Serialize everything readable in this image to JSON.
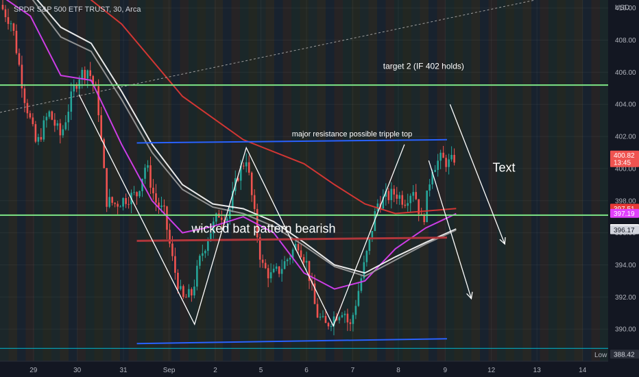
{
  "header": {
    "symbol_line": "SPDR S&P 500 ETF TRUST, 30, Arca"
  },
  "price_axis": {
    "unit": "USD"
  },
  "colors": {
    "background": "#131722",
    "up": "#26a69a",
    "down": "#ef5350"
  },
  "chart_data": {
    "type": "candlestick",
    "ylim": [
      388,
      410.5
    ],
    "y_ticks": [
      390,
      392,
      394,
      396,
      398,
      400,
      402,
      404,
      406,
      408,
      410
    ],
    "y_tick_labels": [
      "390.00",
      "392.00",
      "394.00",
      "396.00",
      "398.00",
      "400.00",
      "402.00",
      "404.00",
      "406.00",
      "408.00",
      "410.00"
    ],
    "x_ticks": [
      {
        "label": "29",
        "pos": 0.055
      },
      {
        "label": "30",
        "pos": 0.127
      },
      {
        "label": "31",
        "pos": 0.203
      },
      {
        "label": "Sep",
        "pos": 0.278
      },
      {
        "label": "2",
        "pos": 0.354
      },
      {
        "label": "5",
        "pos": 0.429
      },
      {
        "label": "6",
        "pos": 0.504
      },
      {
        "label": "7",
        "pos": 0.58
      },
      {
        "label": "8",
        "pos": 0.655
      },
      {
        "label": "9",
        "pos": 0.732
      },
      {
        "label": "12",
        "pos": 0.808
      },
      {
        "label": "13",
        "pos": 0.883
      },
      {
        "label": "14",
        "pos": 0.958
      }
    ],
    "price_path": [
      [
        0.0,
        410.2
      ],
      [
        0.02,
        409.0
      ],
      [
        0.04,
        404.5
      ],
      [
        0.06,
        401.4
      ],
      [
        0.08,
        403.5
      ],
      [
        0.1,
        402.0
      ],
      [
        0.12,
        404.8
      ],
      [
        0.13,
        405.8
      ],
      [
        0.145,
        406.2
      ],
      [
        0.16,
        404.5
      ],
      [
        0.175,
        398.0
      ],
      [
        0.19,
        397.8
      ],
      [
        0.21,
        398.2
      ],
      [
        0.225,
        398.4
      ],
      [
        0.24,
        400.3
      ],
      [
        0.255,
        398.0
      ],
      [
        0.27,
        397.2
      ],
      [
        0.285,
        394.0
      ],
      [
        0.3,
        391.8
      ],
      [
        0.315,
        392.2
      ],
      [
        0.33,
        394.5
      ],
      [
        0.345,
        396.0
      ],
      [
        0.36,
        397.2
      ],
      [
        0.375,
        397.0
      ],
      [
        0.39,
        399.5
      ],
      [
        0.405,
        400.7
      ],
      [
        0.415,
        398.0
      ],
      [
        0.43,
        394.0
      ],
      [
        0.445,
        393.3
      ],
      [
        0.46,
        393.7
      ],
      [
        0.475,
        394.5
      ],
      [
        0.49,
        395.4
      ],
      [
        0.505,
        394.0
      ],
      [
        0.52,
        391.0
      ],
      [
        0.535,
        390.2
      ],
      [
        0.55,
        390.8
      ],
      [
        0.565,
        391.3
      ],
      [
        0.575,
        390.0
      ],
      [
        0.59,
        392.5
      ],
      [
        0.605,
        395.0
      ],
      [
        0.62,
        397.8
      ],
      [
        0.635,
        398.2
      ],
      [
        0.65,
        398.5
      ],
      [
        0.665,
        398.0
      ],
      [
        0.68,
        398.8
      ],
      [
        0.695,
        396.5
      ],
      [
        0.71,
        400.1
      ],
      [
        0.725,
        400.6
      ],
      [
        0.74,
        400.3
      ],
      [
        0.75,
        400.82
      ]
    ],
    "moving_averages": [
      {
        "color": "#e53935",
        "points": [
          [
            0.0,
            415
          ],
          [
            0.1,
            412
          ],
          [
            0.2,
            409
          ],
          [
            0.3,
            404.5
          ],
          [
            0.4,
            401.8
          ],
          [
            0.5,
            400.3
          ],
          [
            0.55,
            399.0
          ],
          [
            0.6,
            397.8
          ],
          [
            0.65,
            397.2
          ],
          [
            0.75,
            397.51
          ]
        ]
      },
      {
        "color": "#e040fb",
        "points": [
          [
            0.0,
            410.8
          ],
          [
            0.05,
            409.5
          ],
          [
            0.1,
            405.8
          ],
          [
            0.15,
            405.5
          ],
          [
            0.2,
            401.5
          ],
          [
            0.25,
            398.0
          ],
          [
            0.3,
            396.0
          ],
          [
            0.35,
            396.4
          ],
          [
            0.4,
            397.0
          ],
          [
            0.45,
            396.0
          ],
          [
            0.5,
            393.5
          ],
          [
            0.55,
            392.5
          ],
          [
            0.6,
            393.0
          ],
          [
            0.65,
            395.0
          ],
          [
            0.7,
            396.3
          ],
          [
            0.75,
            397.19
          ]
        ]
      },
      {
        "color": "#ffffff",
        "points": [
          [
            0.0,
            412.5
          ],
          [
            0.05,
            411.0
          ],
          [
            0.1,
            408.8
          ],
          [
            0.15,
            407.8
          ],
          [
            0.2,
            404.8
          ],
          [
            0.25,
            401.5
          ],
          [
            0.3,
            399.0
          ],
          [
            0.35,
            397.8
          ],
          [
            0.4,
            397.5
          ],
          [
            0.45,
            396.7
          ],
          [
            0.5,
            395.4
          ],
          [
            0.55,
            394.0
          ],
          [
            0.6,
            393.5
          ],
          [
            0.65,
            394.5
          ],
          [
            0.7,
            395.4
          ],
          [
            0.75,
            396.24
          ]
        ]
      },
      {
        "color": "#9e9e9e",
        "points": [
          [
            0.0,
            412.2
          ],
          [
            0.05,
            410.7
          ],
          [
            0.1,
            408.2
          ],
          [
            0.15,
            407.3
          ],
          [
            0.2,
            404.3
          ],
          [
            0.25,
            401.0
          ],
          [
            0.3,
            398.7
          ],
          [
            0.35,
            397.6
          ],
          [
            0.4,
            397.2
          ],
          [
            0.45,
            396.4
          ],
          [
            0.5,
            395.2
          ],
          [
            0.55,
            393.9
          ],
          [
            0.6,
            393.3
          ],
          [
            0.65,
            394.3
          ],
          [
            0.7,
            395.3
          ],
          [
            0.75,
            396.17
          ]
        ]
      }
    ],
    "horizontal_lines": [
      {
        "y": 405.2,
        "color": "#7ee787",
        "width": 2
      },
      {
        "y": 397.1,
        "color": "#7ee787",
        "width": 2
      },
      {
        "y": 388.8,
        "color": "#00bcd4",
        "width": 1
      }
    ],
    "trend_lines": [
      {
        "color": "#2962ff",
        "width": 2,
        "from": [
          0.225,
          401.6
        ],
        "to": [
          0.735,
          401.8
        ]
      },
      {
        "color": "#2962ff",
        "width": 2,
        "from": [
          0.225,
          389.1
        ],
        "to": [
          0.735,
          389.4
        ]
      },
      {
        "color": "#b0363b",
        "width": 3,
        "from": [
          0.225,
          395.5
        ],
        "to": [
          0.735,
          395.7
        ]
      },
      {
        "color": "#9e9e9e",
        "width": 1,
        "dash": "3,3",
        "from": [
          0.0,
          403.5
        ],
        "to": [
          0.88,
          410.5
        ]
      }
    ],
    "pattern": {
      "color": "#ffffff",
      "points": [
        [
          0.13,
          404.6
        ],
        [
          0.32,
          390.3
        ],
        [
          0.405,
          401.3
        ],
        [
          0.548,
          390.2
        ],
        [
          0.665,
          401.5
        ]
      ]
    },
    "arrows": [
      {
        "from": [
          0.74,
          404.0
        ],
        "to": [
          0.83,
          395.3
        ]
      },
      {
        "from": [
          0.705,
          400.5
        ],
        "to": [
          0.775,
          391.9
        ]
      }
    ],
    "annotations": [
      {
        "text": "target 2 (IF 402 holds)",
        "x": 0.63,
        "y": 406.2,
        "size": 12
      },
      {
        "text": "major resistance possible tripple top",
        "x": 0.48,
        "y": 402.0,
        "size": 11
      },
      {
        "text": "wicked bat pattern bearish",
        "x": 0.315,
        "y": 396.0,
        "size": 18
      },
      {
        "text": "Text",
        "x": 0.81,
        "y": 399.8,
        "size": 18
      }
    ],
    "price_labels": [
      {
        "text": "400.82",
        "sub": "13:45",
        "y": 400.82,
        "bg": "#ef5350",
        "fg": "#ffffff"
      },
      {
        "text": "397.51",
        "y": 397.51,
        "bg": "#e53935",
        "fg": "#ffffff"
      },
      {
        "text": "397.19",
        "y": 397.19,
        "bg": "#e040fb",
        "fg": "#ffffff"
      },
      {
        "text": "396.24",
        "y": 396.24,
        "bg": "#ffffff",
        "fg": "#131722"
      },
      {
        "text": "396.17",
        "y": 396.17,
        "bg": "#d1d4dc",
        "fg": "#131722"
      },
      {
        "text": "388.42",
        "y": 388.42,
        "bg": "#2a2e39",
        "fg": "#d1d4dc",
        "prefix": "Low"
      }
    ]
  }
}
